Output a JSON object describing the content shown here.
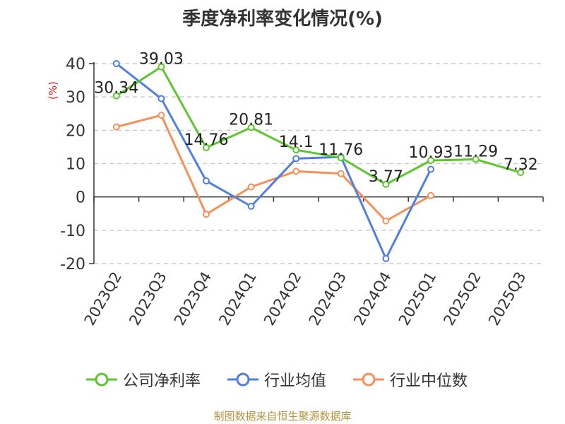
{
  "title": "季度净利率变化情况(%)",
  "source": "制图数据来自恒生聚源数据库",
  "chart_data": {
    "type": "line",
    "categories": [
      "2023Q2",
      "2023Q3",
      "2023Q4",
      "2024Q1",
      "2024Q2",
      "2024Q3",
      "2024Q4",
      "2025Q1",
      "2025Q2",
      "2025Q3"
    ],
    "ylabel": "(%)",
    "ylim": [
      -20,
      40
    ],
    "yticks": [
      40,
      30,
      20,
      10,
      0,
      -10,
      -20
    ],
    "grid": true,
    "legend_position": "bottom",
    "series": [
      {
        "name": "公司净利率",
        "color": "#5dc62e",
        "values": [
          30.34,
          39.03,
          14.76,
          20.81,
          14.1,
          11.76,
          3.77,
          10.93,
          11.29,
          7.32
        ],
        "labels": [
          "30.34",
          "39.03",
          "14.76",
          "20.81",
          "14.1",
          "11.76",
          "3.77",
          "10.93",
          "11.29",
          "7.32"
        ]
      },
      {
        "name": "行业均值",
        "color": "#4f7fe0",
        "values": [
          40,
          29.5,
          4.8,
          -2.8,
          11.5,
          12,
          -18.5,
          8.3,
          null,
          null
        ]
      },
      {
        "name": "行业中位数",
        "color": "#f5905a",
        "values": [
          21,
          24.5,
          -5.2,
          3,
          7.7,
          7,
          -7.2,
          0.4,
          null,
          null
        ]
      }
    ]
  }
}
